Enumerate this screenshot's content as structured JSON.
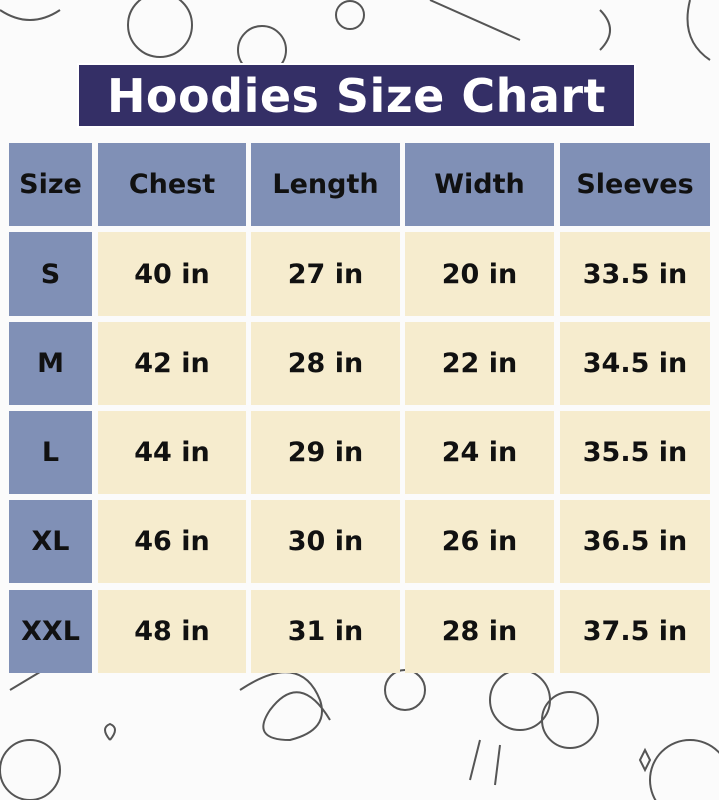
{
  "title": "Hoodies Size Chart",
  "colors": {
    "title_bg": "#342f66",
    "header_bg": "#8090b6",
    "value_bg": "#f6ecce"
  },
  "table": {
    "headers": [
      "Size",
      "Chest",
      "Length",
      "Width",
      "Sleeves"
    ],
    "rows": [
      [
        "S",
        "40 in",
        "27 in",
        "20 in",
        "33.5 in"
      ],
      [
        "M",
        "42 in",
        "28 in",
        "22 in",
        "34.5 in"
      ],
      [
        "L",
        "44 in",
        "29 in",
        "24 in",
        "35.5 in"
      ],
      [
        "XL",
        "46 in",
        "30 in",
        "26 in",
        "36.5 in"
      ],
      [
        "XXL",
        "48 in",
        "31 in",
        "28 in",
        "37.5 in"
      ]
    ]
  }
}
